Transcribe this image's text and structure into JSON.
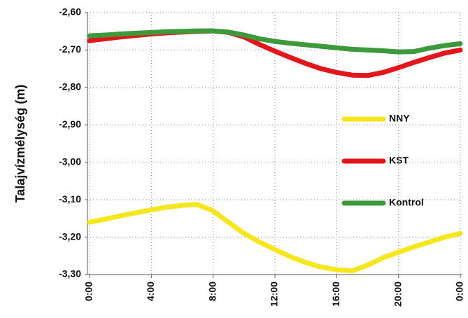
{
  "chart_data": {
    "type": "line",
    "y_label": "Talajvízmélység (m)",
    "x": [
      0,
      1,
      2,
      3,
      4,
      5,
      6,
      7,
      8,
      9,
      10,
      11,
      12,
      13,
      14,
      15,
      16,
      17,
      18,
      19,
      20,
      21,
      22,
      23,
      24
    ],
    "series": [
      {
        "name": "NNY",
        "color": "#f5e61e",
        "values": [
          -3.16,
          -3.152,
          -3.143,
          -3.135,
          -3.127,
          -3.12,
          -3.115,
          -3.113,
          -3.13,
          -3.16,
          -3.19,
          -3.213,
          -3.233,
          -3.252,
          -3.268,
          -3.28,
          -3.287,
          -3.29,
          -3.275,
          -3.255,
          -3.24,
          -3.226,
          -3.213,
          -3.2,
          -3.19
        ]
      },
      {
        "name": "KST",
        "color": "#e3161b",
        "values": [
          -2.675,
          -2.67,
          -2.665,
          -2.661,
          -2.657,
          -2.654,
          -2.652,
          -2.65,
          -2.649,
          -2.653,
          -2.665,
          -2.685,
          -2.703,
          -2.72,
          -2.736,
          -2.75,
          -2.76,
          -2.767,
          -2.768,
          -2.76,
          -2.747,
          -2.733,
          -2.72,
          -2.708,
          -2.7
        ]
      },
      {
        "name": "Kontrol",
        "color": "#3d9a3b",
        "values": [
          -2.662,
          -2.66,
          -2.657,
          -2.655,
          -2.653,
          -2.651,
          -2.65,
          -2.649,
          -2.649,
          -2.652,
          -2.66,
          -2.67,
          -2.677,
          -2.682,
          -2.686,
          -2.69,
          -2.694,
          -2.698,
          -2.7,
          -2.702,
          -2.705,
          -2.704,
          -2.695,
          -2.688,
          -2.683
        ]
      }
    ],
    "xlim": [
      0,
      24
    ],
    "xticks": [
      {
        "value": 0,
        "label": "0:00"
      },
      {
        "value": 4,
        "label": "4:00"
      },
      {
        "value": 8,
        "label": "8:00"
      },
      {
        "value": 12,
        "label": "12:00"
      },
      {
        "value": 16,
        "label": "16:00"
      },
      {
        "value": 20,
        "label": "20:00"
      },
      {
        "value": 24,
        "label": "0:00"
      }
    ],
    "ylim": [
      -3.3,
      -2.6
    ],
    "yticks": [
      {
        "value": -3.3,
        "label": "-3,30"
      },
      {
        "value": -3.2,
        "label": "-3,20"
      },
      {
        "value": -3.1,
        "label": "-3,10"
      },
      {
        "value": -3.0,
        "label": "-3,00"
      },
      {
        "value": -2.9,
        "label": "-2,90"
      },
      {
        "value": -2.8,
        "label": "-2,80"
      },
      {
        "value": -2.7,
        "label": "-2,70"
      },
      {
        "value": -2.6,
        "label": "-2,60"
      }
    ],
    "grid": true,
    "legend": "right"
  }
}
